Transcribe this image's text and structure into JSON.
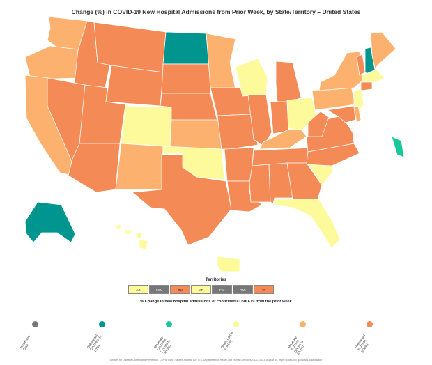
{
  "title": "Change (%) in COVID-19 New Hospital Admissions from Prior Week, by State/Territory – United States",
  "colors": {
    "insufficient": "#777777",
    "sub_dec": "#00968f",
    "mod_dec": "#19c89a",
    "stable": "#fdfa9b",
    "mod_inc": "#fcb26e",
    "sub_inc": "#f48a55"
  },
  "states": {
    "WA": "mod_inc",
    "OR": "mod_inc",
    "CA": "mod_inc",
    "ID": "sub_inc",
    "NV": "sub_inc",
    "MT": "sub_inc",
    "WY": "sub_inc",
    "UT": "sub_inc",
    "AZ": "sub_inc",
    "CO": "stable",
    "NM": "mod_inc",
    "ND": "sub_dec",
    "SD": "sub_inc",
    "NE": "sub_inc",
    "KS": "mod_inc",
    "OK": "stable",
    "TX": "sub_inc",
    "MN": "mod_inc",
    "IA": "sub_inc",
    "MO": "sub_inc",
    "AR": "sub_inc",
    "LA": "sub_inc",
    "WI": "stable",
    "IL": "sub_inc",
    "MI": "sub_inc",
    "IN": "sub_inc",
    "OH": "stable",
    "KY": "mod_inc",
    "TN": "sub_inc",
    "MS": "sub_inc",
    "AL": "sub_inc",
    "GA": "sub_inc",
    "FL": "stable",
    "SC": "stable",
    "NC": "sub_inc",
    "VA": "sub_inc",
    "WV": "sub_inc",
    "PA": "mod_inc",
    "NY": "mod_inc",
    "VT": "sub_inc",
    "NH": "sub_dec",
    "ME": "mod_inc",
    "MA": "stable",
    "CT": "sub_inc",
    "NJ": "stable",
    "MD": "sub_inc",
    "DE": "mod_inc",
    "DC": "mod_dec",
    "AK": "sub_dec",
    "HI": "stable",
    "PR": "stable"
  },
  "territories": {
    "title": "Territories",
    "items": [
      {
        "code": "AS",
        "cat": "stable"
      },
      {
        "code": "FSM",
        "cat": "insufficient"
      },
      {
        "code": "GU",
        "cat": "sub_inc"
      },
      {
        "code": "MP",
        "cat": "stable"
      },
      {
        "code": "PW",
        "cat": "insufficient"
      },
      {
        "code": "RMI",
        "cat": "insufficient"
      },
      {
        "code": "VI",
        "cat": "sub_inc"
      }
    ]
  },
  "legend": {
    "title": "% Change in new hospital admissions of confirmed COVID-19 from the prior week",
    "items": [
      {
        "cat": "insufficient",
        "label": "Insufficient\nData"
      },
      {
        "cat": "sub_dec",
        "label": "Substantial\nDecrease (≤\n-20%)"
      },
      {
        "cat": "mod_dec",
        "label": "Moderate\nDecrease\n(-19.9% to\n-10.0%)"
      },
      {
        "cat": "stable",
        "label": "Stable (-9.9%\nto 9.9%)"
      },
      {
        "cat": "mod_inc",
        "label": "Moderate\nIncrease\n(10.0% to\n19.9%)"
      },
      {
        "cat": "sub_inc",
        "label": "Substantial\nIncrease\n(≥20%)"
      }
    ]
  },
  "footer": "Centers for Disease Control and Prevention. COVID Data Tracker. Atlanta, GA: U.S. Department of Health and Human Services, CDC; 2023, August 30. https://covid.cdc.gov/covid-data-tracker"
}
